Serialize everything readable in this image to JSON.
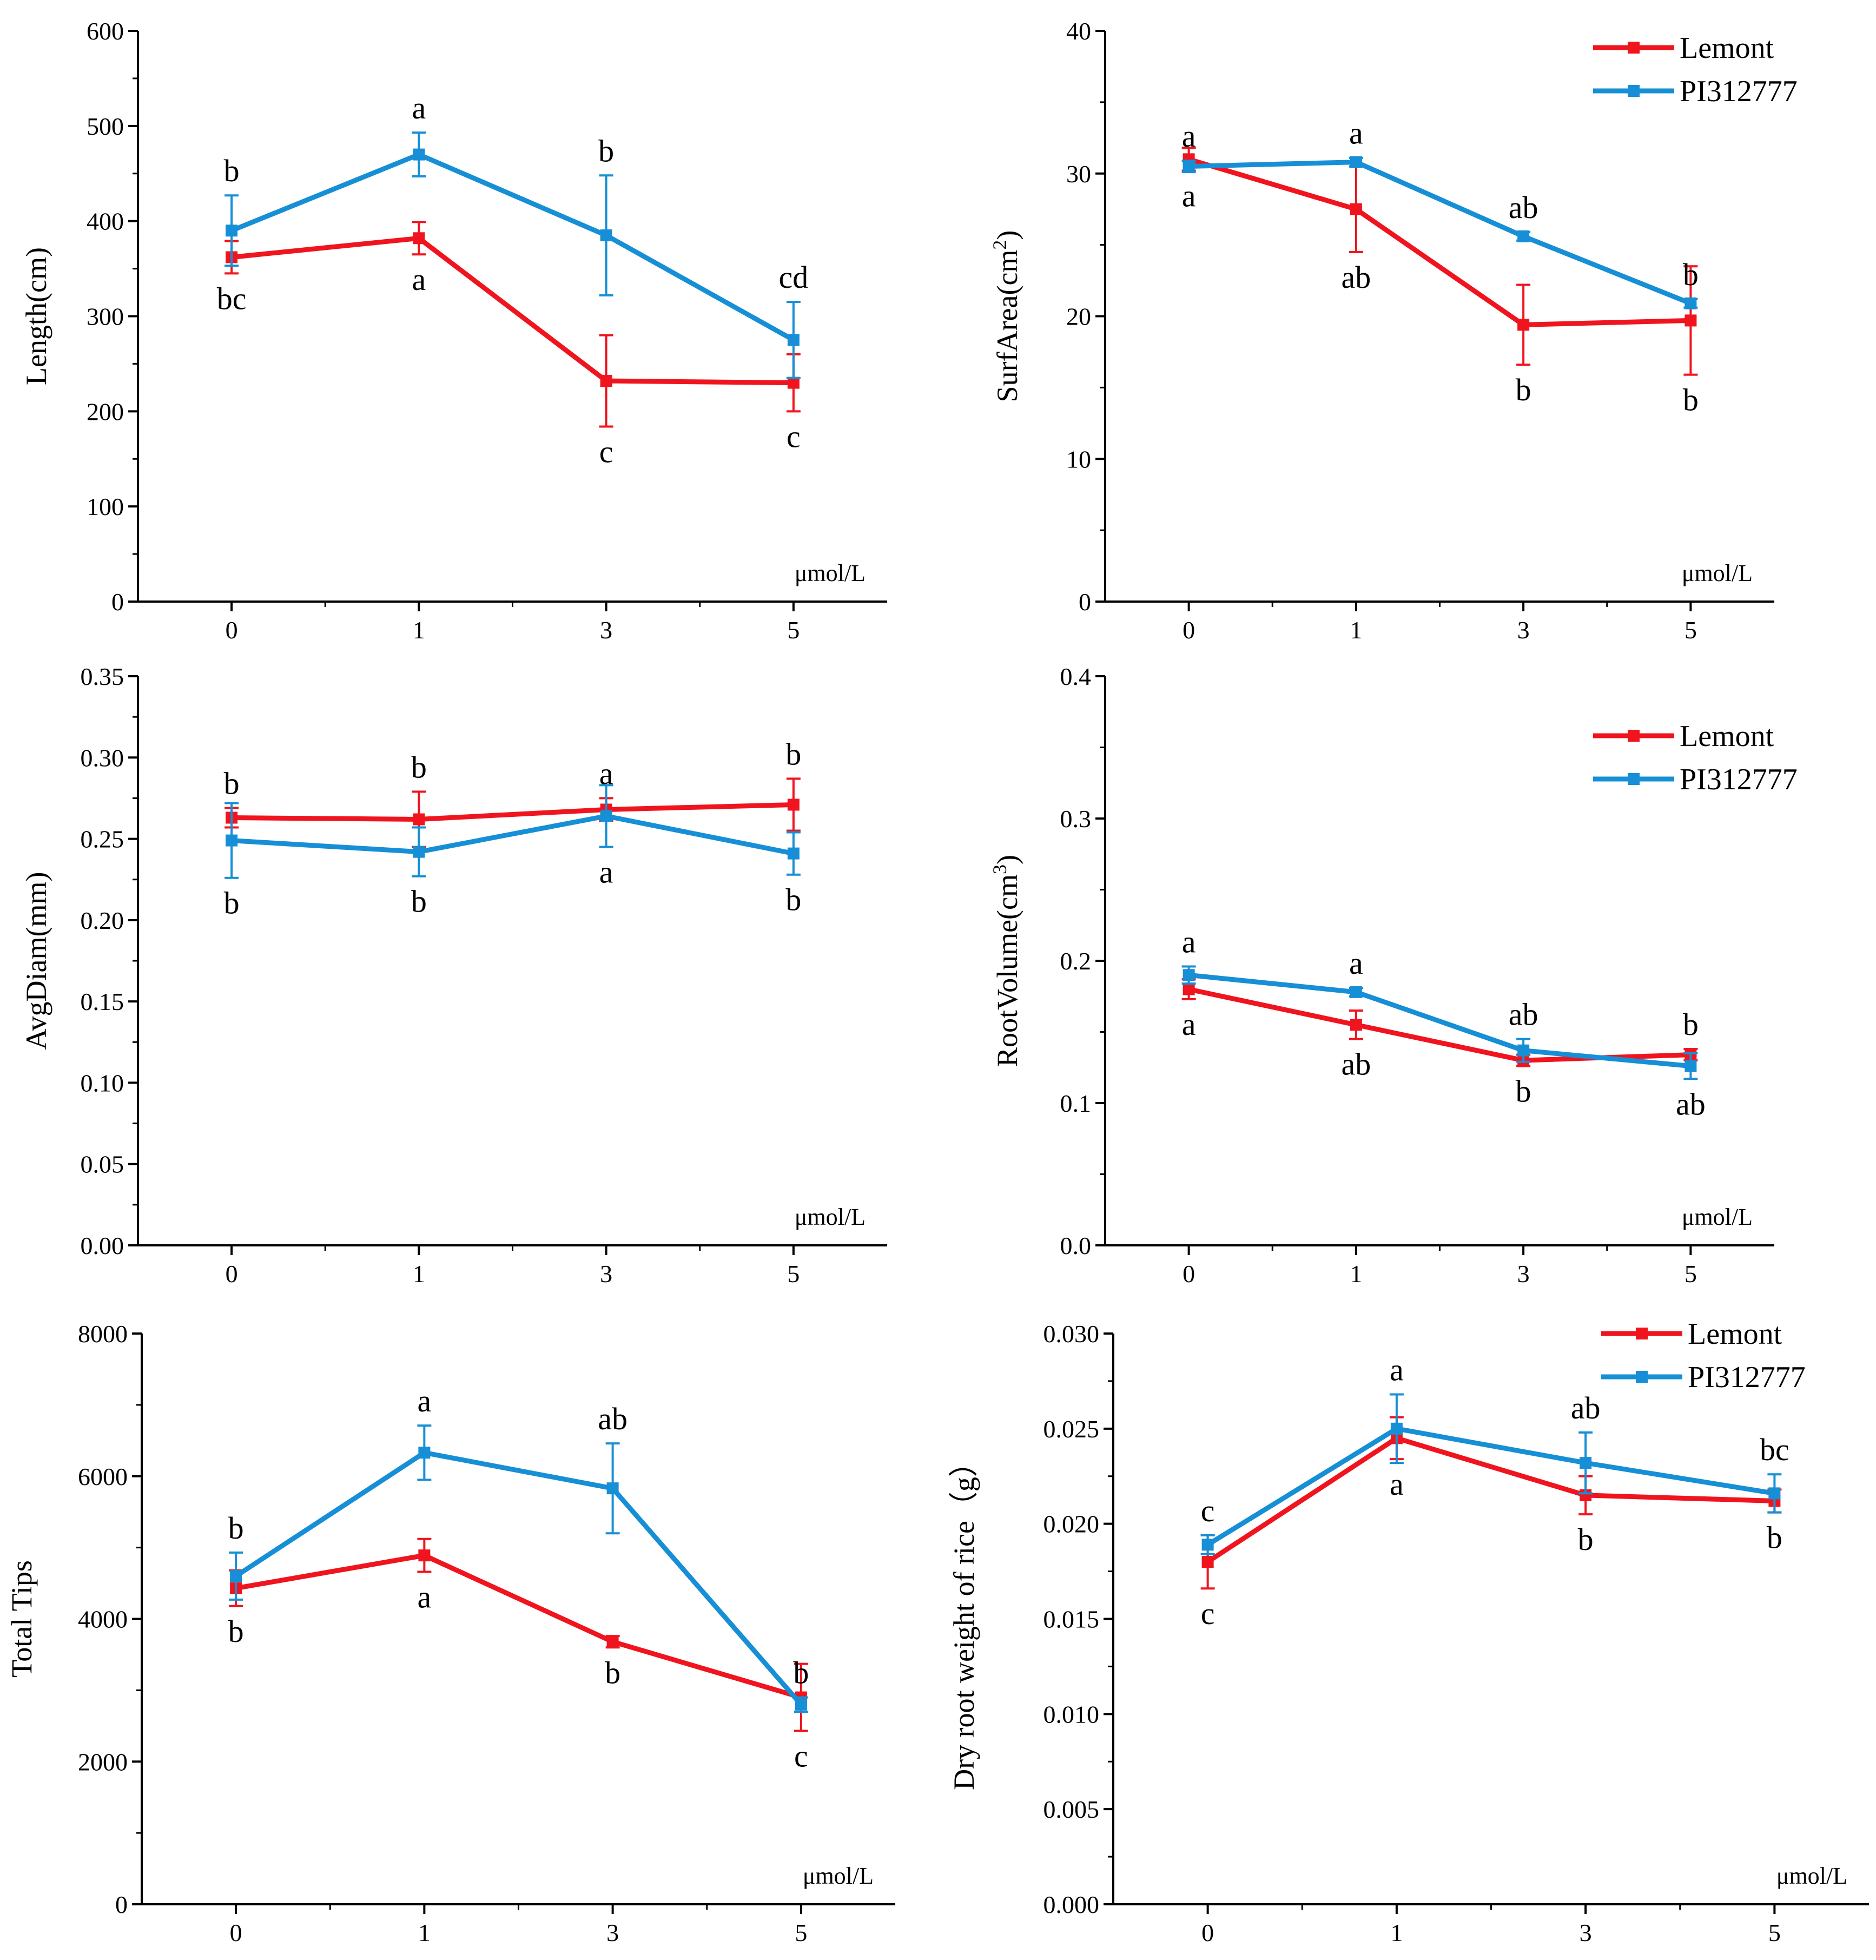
{
  "colors": {
    "lemont": "#f0141e",
    "pi312777": "#168fd6",
    "axis": "#000000"
  },
  "chart_data": [
    {
      "type": "line",
      "panel": "length",
      "categories": [
        "0",
        "1",
        "3",
        "5"
      ],
      "ylabel": "Length(cm)",
      "unit": "μmol/L",
      "ylim": [
        0,
        600
      ],
      "yticks": [
        0,
        100,
        200,
        300,
        400,
        500,
        600
      ],
      "ytick_labels": [
        "0",
        "100",
        "200",
        "300",
        "400",
        "500",
        "600"
      ],
      "series": [
        {
          "name": "Lemont",
          "values": [
            362,
            382,
            232,
            230
          ],
          "errors": [
            17,
            17,
            48,
            30
          ],
          "letters": [
            "bc",
            "a",
            "c",
            "c"
          ],
          "letter_pos": [
            "below",
            "below",
            "below",
            "below"
          ]
        },
        {
          "name": "PI312777",
          "values": [
            390,
            470,
            385,
            275
          ],
          "errors": [
            37,
            23,
            63,
            40
          ],
          "letters": [
            "b",
            "a",
            "b",
            "cd"
          ],
          "letter_pos": [
            "above",
            "above",
            "above",
            "above"
          ]
        }
      ]
    },
    {
      "type": "line",
      "panel": "surfarea",
      "categories": [
        "0",
        "1",
        "3",
        "5"
      ],
      "ylabel": "SurfArea(cm2)",
      "unit": "μmol/L",
      "ylim": [
        0,
        40
      ],
      "yticks": [
        0,
        10,
        20,
        30,
        40
      ],
      "ytick_labels": [
        "0",
        "10",
        "20",
        "30",
        "40"
      ],
      "legend": [
        "Lemont",
        "PI312777"
      ],
      "series": [
        {
          "name": "Lemont",
          "values": [
            31.0,
            27.5,
            19.4,
            19.7
          ],
          "errors": [
            0.8,
            3.0,
            2.8,
            3.8
          ],
          "letters": [
            "a",
            "ab",
            "b",
            "b"
          ],
          "letter_pos": [
            "below",
            "below",
            "below",
            "below"
          ]
        },
        {
          "name": "PI312777",
          "values": [
            30.5,
            30.8,
            25.6,
            20.9
          ],
          "errors": [
            0.4,
            0.3,
            0.3,
            0.3
          ],
          "letters": [
            "a",
            "a",
            "ab",
            "b"
          ],
          "letter_pos": [
            "above",
            "above",
            "above",
            "above"
          ]
        }
      ]
    },
    {
      "type": "line",
      "panel": "avgdiam",
      "categories": [
        "0",
        "1",
        "3",
        "5"
      ],
      "ylabel": "AvgDiam(mm)",
      "unit": "μmol/L",
      "ylim": [
        0,
        0.35
      ],
      "yticks": [
        0,
        0.05,
        0.1,
        0.15,
        0.2,
        0.25,
        0.3,
        0.35
      ],
      "ytick_labels": [
        "0.00",
        "0.05",
        "0.10",
        "0.15",
        "0.20",
        "0.25",
        "0.30",
        "0.35"
      ],
      "series": [
        {
          "name": "Lemont",
          "values": [
            0.263,
            0.262,
            0.268,
            0.271
          ],
          "errors": [
            0.006,
            0.017,
            0.007,
            0.016
          ],
          "letters": [
            "b",
            "b",
            "a",
            "b"
          ],
          "letter_pos": [
            "above",
            "above",
            "above",
            "above"
          ]
        },
        {
          "name": "PI312777",
          "values": [
            0.249,
            0.242,
            0.264,
            0.241
          ],
          "errors": [
            0.023,
            0.015,
            0.019,
            0.013
          ],
          "letters": [
            "b",
            "b",
            "a",
            "b"
          ],
          "letter_pos": [
            "below",
            "below",
            "below",
            "below"
          ]
        }
      ]
    },
    {
      "type": "line",
      "panel": "rootvolume",
      "categories": [
        "0",
        "1",
        "3",
        "5"
      ],
      "ylabel": "RootVolume(cm3)",
      "unit": "μmol/L",
      "ylim": [
        0,
        0.4
      ],
      "yticks": [
        0,
        0.1,
        0.2,
        0.3,
        0.4
      ],
      "ytick_labels": [
        "0.0",
        "0.1",
        "0.2",
        "0.3",
        "0.4"
      ],
      "legend": [
        "Lemont",
        "PI312777"
      ],
      "series": [
        {
          "name": "Lemont",
          "values": [
            0.18,
            0.155,
            0.13,
            0.134
          ],
          "errors": [
            0.007,
            0.01,
            0.004,
            0.004
          ],
          "letters": [
            "a",
            "ab",
            "b",
            "b"
          ],
          "letter_pos": [
            "below",
            "below",
            "below",
            "above"
          ]
        },
        {
          "name": "PI312777",
          "values": [
            0.19,
            0.178,
            0.137,
            0.126
          ],
          "errors": [
            0.006,
            0.003,
            0.008,
            0.009
          ],
          "letters": [
            "a",
            "a",
            "ab",
            "ab"
          ],
          "letter_pos": [
            "above",
            "above",
            "above",
            "below"
          ]
        }
      ]
    },
    {
      "type": "line",
      "panel": "totaltips",
      "categories": [
        "0",
        "1",
        "3",
        "5"
      ],
      "ylabel": "Total Tips",
      "unit": "μmol/L",
      "ylim": [
        0,
        8000
      ],
      "yticks": [
        0,
        2000,
        4000,
        6000,
        8000
      ],
      "ytick_labels": [
        "0",
        "2000",
        "4000",
        "6000",
        "8000"
      ],
      "series": [
        {
          "name": "Lemont",
          "values": [
            4430,
            4890,
            3680,
            2900
          ],
          "errors": [
            250,
            230,
            80,
            470
          ],
          "letters": [
            "b",
            "a",
            "b",
            "c"
          ],
          "letter_pos": [
            "below",
            "below",
            "below",
            "below"
          ]
        },
        {
          "name": "PI312777",
          "values": [
            4600,
            6330,
            5830,
            2800
          ],
          "errors": [
            330,
            380,
            630,
            100
          ],
          "letters": [
            "b",
            "a",
            "ab",
            "b"
          ],
          "letter_pos": [
            "above",
            "above",
            "above",
            "above"
          ]
        }
      ]
    },
    {
      "type": "line",
      "panel": "dryweight",
      "categories": [
        "0",
        "1",
        "3",
        "5"
      ],
      "ylabel": "Dry root weight of rice（g）",
      "unit": "μmol/L",
      "ylim": [
        0,
        0.03
      ],
      "yticks": [
        0,
        0.005,
        0.01,
        0.015,
        0.02,
        0.025,
        0.03
      ],
      "ytick_labels": [
        "0.000",
        "0.005",
        "0.010",
        "0.015",
        "0.020",
        "0.025",
        "0.030"
      ],
      "legend": [
        "Lemont",
        "PI312777"
      ],
      "series": [
        {
          "name": "Lemont",
          "values": [
            0.018,
            0.0245,
            0.0215,
            0.0212
          ],
          "errors": [
            0.0014,
            0.0011,
            0.001,
            0.0006
          ],
          "letters": [
            "c",
            "a",
            "b",
            "b"
          ],
          "letter_pos": [
            "below",
            "below",
            "below",
            "below"
          ]
        },
        {
          "name": "PI312777",
          "values": [
            0.0189,
            0.025,
            0.0232,
            0.0216
          ],
          "errors": [
            0.0005,
            0.0018,
            0.0016,
            0.001
          ],
          "letters": [
            "c",
            "a",
            "ab",
            "bc"
          ],
          "letter_pos": [
            "above",
            "above",
            "above",
            "above"
          ]
        }
      ]
    }
  ]
}
